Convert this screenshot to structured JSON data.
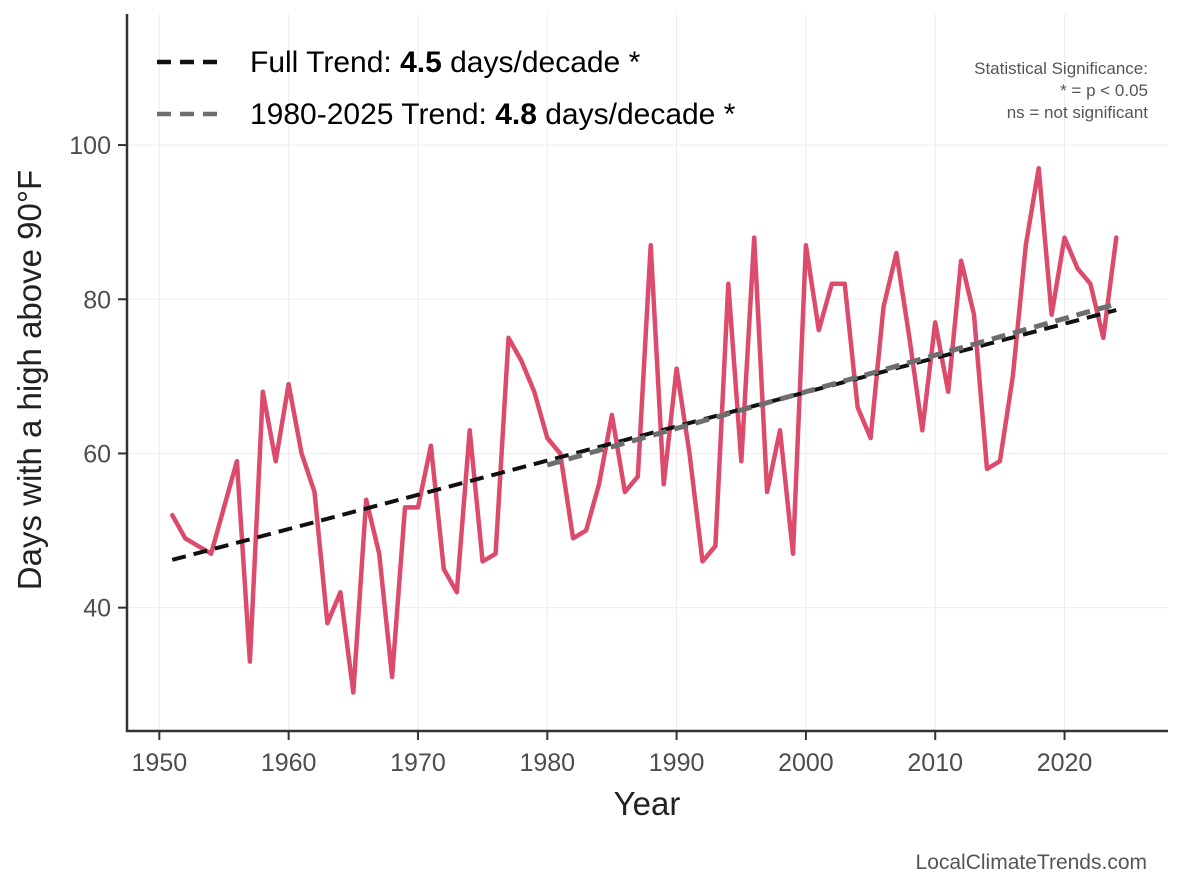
{
  "chart_data": {
    "type": "line",
    "xlabel": "Year",
    "ylabel": "Days with a high above 90°F",
    "xlim": [
      1947.5,
      2028
    ],
    "ylim": [
      24,
      117
    ],
    "x_ticks": [
      1950,
      1960,
      1970,
      1980,
      1990,
      2000,
      2010,
      2020
    ],
    "y_ticks": [
      40,
      60,
      80,
      100
    ],
    "grid": true,
    "series": [
      {
        "name": "Days with a high above 90°F",
        "color": "#dc4a6c",
        "x": [
          1951,
          1952,
          1953,
          1954,
          1955,
          1956,
          1957,
          1958,
          1959,
          1960,
          1961,
          1962,
          1963,
          1964,
          1965,
          1966,
          1967,
          1968,
          1969,
          1970,
          1971,
          1972,
          1973,
          1974,
          1975,
          1976,
          1977,
          1978,
          1979,
          1980,
          1981,
          1982,
          1983,
          1984,
          1985,
          1986,
          1987,
          1988,
          1989,
          1990,
          1991,
          1992,
          1993,
          1994,
          1995,
          1996,
          1997,
          1998,
          1999,
          2000,
          2001,
          2002,
          2003,
          2004,
          2005,
          2006,
          2007,
          2008,
          2009,
          2010,
          2011,
          2012,
          2013,
          2014,
          2015,
          2016,
          2017,
          2018,
          2019,
          2020,
          2021,
          2022,
          2023,
          2024
        ],
        "values": [
          52,
          49,
          48,
          47,
          53,
          59,
          33,
          68,
          59,
          69,
          60,
          55,
          38,
          42,
          29,
          54,
          47,
          31,
          53,
          53,
          61,
          45,
          42,
          63,
          46,
          47,
          75,
          72,
          68,
          62,
          60,
          49,
          50,
          56,
          65,
          55,
          57,
          87,
          56,
          71,
          60,
          46,
          48,
          82,
          59,
          88,
          55,
          63,
          47,
          87,
          76,
          82,
          82,
          66,
          62,
          79,
          86,
          75,
          63,
          77,
          68,
          85,
          78,
          58,
          59,
          70,
          87,
          97,
          78,
          88,
          84,
          82,
          75,
          88
        ]
      }
    ],
    "trend_lines": [
      {
        "name": "Full Trend",
        "x": [
          1951,
          2024
        ],
        "y": [
          46.2,
          78.6
        ],
        "color": "#111111",
        "dash": "dashed"
      },
      {
        "name": "1980-2025 Trend",
        "x": [
          1980,
          2024
        ],
        "y": [
          58.5,
          79.4
        ],
        "color": "#6e6e6e",
        "dash": "dashed"
      }
    ],
    "legend": {
      "position": "top-left",
      "entries": [
        {
          "prefix": "Full Trend: ",
          "value": "4.5",
          "suffix": " days/decade *",
          "color": "#111111"
        },
        {
          "prefix": "1980-2025 Trend: ",
          "value": "4.8",
          "suffix": " days/decade *",
          "color": "#6e6e6e"
        }
      ]
    },
    "significance_note": [
      "Statistical Significance:",
      "* = p < 0.05",
      "ns = not significant"
    ],
    "source": "LocalClimateTrends.com"
  }
}
